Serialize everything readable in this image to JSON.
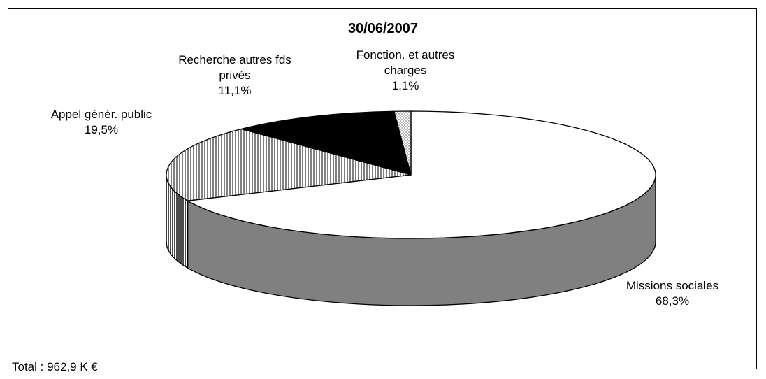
{
  "chart_data": {
    "type": "pie",
    "title": "30/06/2007",
    "slices": [
      {
        "label": "Missions sociales",
        "value": 68.3,
        "value_label": "68,3%",
        "pattern": "solid-white-side-grey"
      },
      {
        "label": "Appel génér. public",
        "value": 19.5,
        "value_label": "19,5%",
        "pattern": "vertical-stripes"
      },
      {
        "label": "Recherche autres fds privés",
        "value": 11.1,
        "value_label": "11,1%",
        "pattern": "solid-black"
      },
      {
        "label": "Fonction. et autres charges",
        "value": 1.1,
        "value_label": "1,1%",
        "pattern": "dotted"
      }
    ],
    "style": "3d",
    "legend": "none"
  },
  "labels": {
    "missions_line1": "Missions sociales",
    "missions_line2": "68,3%",
    "appel_line1": "Appel génér. public",
    "appel_line2": "19,5%",
    "recherche_line1": "Recherche autres fds",
    "recherche_line2": "privés",
    "recherche_line3": "11,1%",
    "fonction_line1": "Fonction. et autres",
    "fonction_line2": "charges",
    "fonction_line3": "1,1%"
  },
  "footer": "Total : 962,9 K €",
  "colors": {
    "missions_top": "#ffffff",
    "missions_side": "#808080",
    "recherche": "#000000",
    "outline": "#000000"
  }
}
